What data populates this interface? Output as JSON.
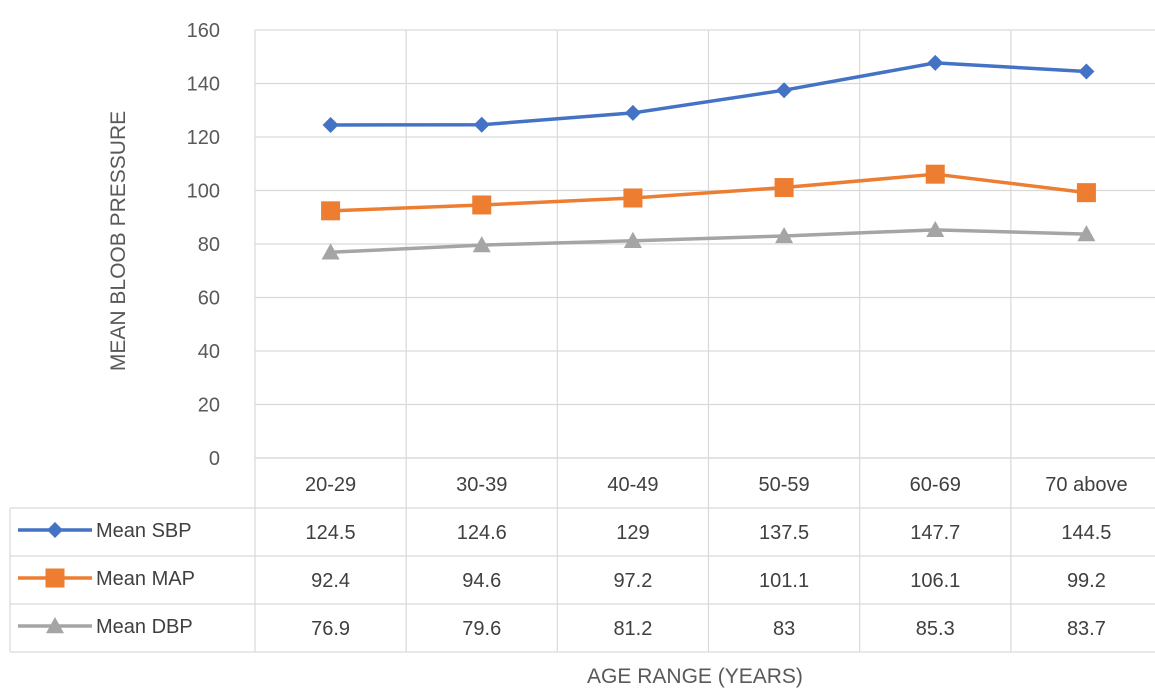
{
  "chart_data": {
    "type": "line",
    "title": "",
    "xlabel": "AGE RANGE (YEARS)",
    "ylabel": "MEAN BLOOB PRESSURE",
    "ylim": [
      0,
      160
    ],
    "yticks": [
      "0",
      "20",
      "40",
      "60",
      "80",
      "100",
      "120",
      "140",
      "160"
    ],
    "categories": [
      "20-29",
      "30-39",
      "40-49",
      "50-59",
      "60-69",
      "70 above"
    ],
    "grid": true,
    "legend": "data-table",
    "series": [
      {
        "name": "Mean SBP",
        "values": [
          124.5,
          124.6,
          129,
          137.5,
          147.7,
          144.5
        ],
        "labels": [
          "124.5",
          "124.6",
          "129",
          "137.5",
          "147.7",
          "144.5"
        ],
        "marker": "diamond",
        "color": "#4472C4"
      },
      {
        "name": "Mean MAP",
        "values": [
          92.4,
          94.6,
          97.2,
          101.1,
          106.1,
          99.2
        ],
        "labels": [
          "92.4",
          "94.6",
          "97.2",
          "101.1",
          "106.1",
          "99.2"
        ],
        "marker": "square",
        "color": "#ED7D31"
      },
      {
        "name": "Mean DBP",
        "values": [
          76.9,
          79.6,
          81.2,
          83,
          85.3,
          83.7
        ],
        "labels": [
          "76.9",
          "79.6",
          "81.2",
          "83",
          "85.3",
          "83.7"
        ],
        "marker": "triangle",
        "color": "#A5A5A5"
      }
    ]
  }
}
